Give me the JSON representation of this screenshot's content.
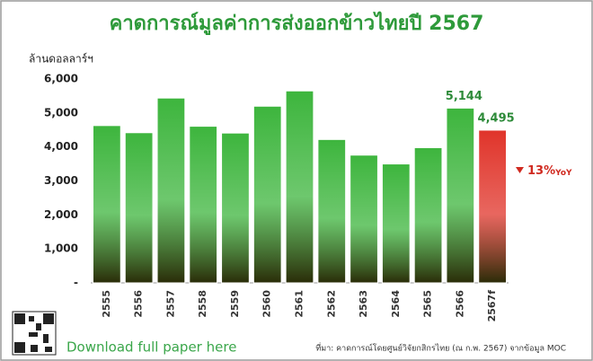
{
  "chart_data": {
    "type": "bar",
    "title": "คาดการณ์มูลค่าการส่งออกข้าวไทยปี 2567",
    "y_label": "ล้านดอลลาร์ฯ",
    "categories": [
      "2555",
      "2556",
      "2557",
      "2558",
      "2559",
      "2560",
      "2561",
      "2562",
      "2563",
      "2564",
      "2565",
      "2566",
      "2567f"
    ],
    "values": [
      4630,
      4420,
      5440,
      4610,
      4410,
      5200,
      5650,
      4220,
      3760,
      3500,
      3980,
      5144,
      4495
    ],
    "value_labels": [
      null,
      null,
      null,
      null,
      null,
      null,
      null,
      null,
      null,
      null,
      null,
      "5,144",
      "4,495"
    ],
    "colors": [
      "#3db53d",
      "#3db53d",
      "#3db53d",
      "#3db53d",
      "#3db53d",
      "#3db53d",
      "#3db53d",
      "#3db53d",
      "#3db53d",
      "#3db53d",
      "#3db53d",
      "#3db53d",
      "#e0342a"
    ],
    "ylim": [
      0,
      6000
    ],
    "yticks": [
      {
        "value": 0,
        "label": "-"
      },
      {
        "value": 1000,
        "label": "1,000"
      },
      {
        "value": 2000,
        "label": "2,000"
      },
      {
        "value": 3000,
        "label": "3,000"
      },
      {
        "value": 4000,
        "label": "4,000"
      },
      {
        "value": 5000,
        "label": "5,000"
      },
      {
        "value": 6000,
        "label": "6,000"
      }
    ],
    "grid": false,
    "annotation": {
      "text": "13%",
      "suffix": "YoY"
    }
  },
  "footer": {
    "link": "Download full paper here",
    "source": "ที่มา: คาดการณ์โดยศูนย์วิจัยกสิกรไทย (ณ ก.พ. 2567) จากข้อมูล MOC"
  }
}
